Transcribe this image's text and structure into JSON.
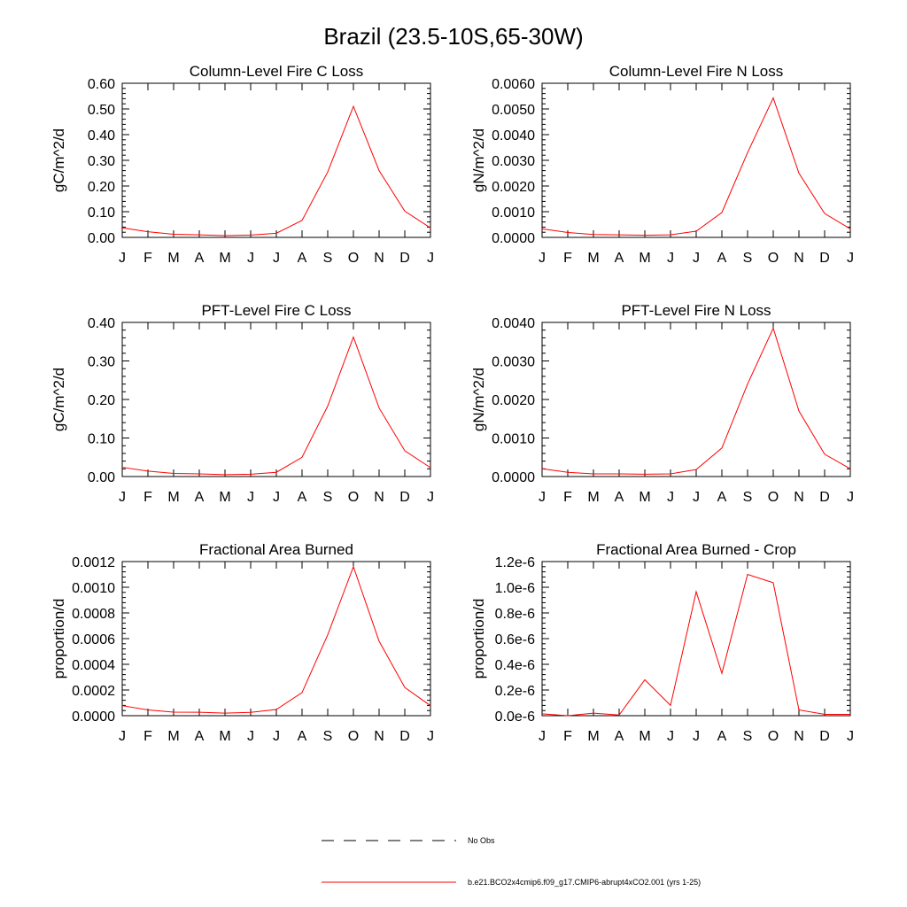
{
  "figure": {
    "title": "Brazil (23.5-10S,65-30W)"
  },
  "legend": {
    "obs_label": "No Obs",
    "model_label": "b.e21.BCO2x4cmip6.f09_g17.CMIP6-abrupt4xCO2.001 (yrs 1-25)",
    "obs_color": "#000000",
    "model_color": "#ff0000"
  },
  "chart_data": [
    {
      "type": "line",
      "title": "Column-Level Fire C Loss",
      "xlabel": "",
      "ylabel": "gC/m^2/d",
      "categories": [
        "J",
        "F",
        "M",
        "A",
        "M",
        "J",
        "J",
        "A",
        "S",
        "O",
        "N",
        "D",
        "J"
      ],
      "ylim": [
        0,
        0.6
      ],
      "yticks": [
        0,
        0.1,
        0.2,
        0.3,
        0.4,
        0.5,
        0.6
      ],
      "ytick_labels": [
        "0.00",
        "0.10",
        "0.20",
        "0.30",
        "0.40",
        "0.50",
        "0.60"
      ],
      "series": [
        {
          "name": "b.e21.BCO2x4cmip6.f09_g17.CMIP6-abrupt4xCO2.001 (yrs 1-25)",
          "values": [
            0.037,
            0.022,
            0.012,
            0.01,
            0.007,
            0.009,
            0.016,
            0.066,
            0.255,
            0.51,
            0.26,
            0.102,
            0.037
          ]
        }
      ]
    },
    {
      "type": "line",
      "title": "Column-Level Fire N Loss",
      "xlabel": "",
      "ylabel": "gN/m^2/d",
      "categories": [
        "J",
        "F",
        "M",
        "A",
        "M",
        "J",
        "J",
        "A",
        "S",
        "O",
        "N",
        "D",
        "J"
      ],
      "ylim": [
        0,
        0.006
      ],
      "yticks": [
        0,
        0.001,
        0.002,
        0.003,
        0.004,
        0.005,
        0.006
      ],
      "ytick_labels": [
        "0.0000",
        "0.0010",
        "0.0020",
        "0.0030",
        "0.0040",
        "0.0050",
        "0.0060"
      ],
      "series": [
        {
          "name": "b.e21.BCO2x4cmip6.f09_g17.CMIP6-abrupt4xCO2.001 (yrs 1-25)",
          "values": [
            0.00033,
            0.00019,
            0.00011,
            0.0001,
            8e-05,
            0.0001,
            0.00024,
            0.00097,
            0.0033,
            0.00543,
            0.0025,
            0.00093,
            0.00033
          ]
        }
      ]
    },
    {
      "type": "line",
      "title": "PFT-Level Fire C Loss",
      "xlabel": "",
      "ylabel": "gC/m^2/d",
      "categories": [
        "J",
        "F",
        "M",
        "A",
        "M",
        "J",
        "J",
        "A",
        "S",
        "O",
        "N",
        "D",
        "J"
      ],
      "ylim": [
        0,
        0.4
      ],
      "yticks": [
        0,
        0.1,
        0.2,
        0.3,
        0.4
      ],
      "ytick_labels": [
        "0.00",
        "0.10",
        "0.20",
        "0.30",
        "0.40"
      ],
      "series": [
        {
          "name": "b.e21.BCO2x4cmip6.f09_g17.CMIP6-abrupt4xCO2.001 (yrs 1-25)",
          "values": [
            0.024,
            0.014,
            0.008,
            0.007,
            0.005,
            0.006,
            0.011,
            0.05,
            0.183,
            0.362,
            0.178,
            0.067,
            0.023
          ]
        }
      ]
    },
    {
      "type": "line",
      "title": "PFT-Level Fire N Loss",
      "xlabel": "",
      "ylabel": "gN/m^2/d",
      "categories": [
        "J",
        "F",
        "M",
        "A",
        "M",
        "J",
        "J",
        "A",
        "S",
        "O",
        "N",
        "D",
        "J"
      ],
      "ylim": [
        0,
        0.004
      ],
      "yticks": [
        0,
        0.001,
        0.002,
        0.003,
        0.004
      ],
      "ytick_labels": [
        "0.0000",
        "0.0010",
        "0.0020",
        "0.0030",
        "0.0040"
      ],
      "series": [
        {
          "name": "b.e21.BCO2x4cmip6.f09_g17.CMIP6-abrupt4xCO2.001 (yrs 1-25)",
          "values": [
            0.0002,
            0.00011,
            7e-05,
            7e-05,
            6e-05,
            7e-05,
            0.00018,
            0.00074,
            0.0024,
            0.00385,
            0.0017,
            0.00058,
            0.0002
          ]
        }
      ]
    },
    {
      "type": "line",
      "title": "Fractional Area Burned",
      "xlabel": "",
      "ylabel": "proportion/d",
      "categories": [
        "J",
        "F",
        "M",
        "A",
        "M",
        "J",
        "J",
        "A",
        "S",
        "O",
        "N",
        "D",
        "J"
      ],
      "ylim": [
        0,
        0.0012
      ],
      "yticks": [
        0,
        0.0002,
        0.0004,
        0.0006,
        0.0008,
        0.001,
        0.0012
      ],
      "ytick_labels": [
        "0.0000",
        "0.0002",
        "0.0004",
        "0.0006",
        "0.0008",
        "0.0010",
        "0.0012"
      ],
      "series": [
        {
          "name": "b.e21.BCO2x4cmip6.f09_g17.CMIP6-abrupt4xCO2.001 (yrs 1-25)",
          "values": [
            7.8e-05,
            4.5e-05,
            2.8e-05,
            2.7e-05,
            2e-05,
            2.6e-05,
            4.8e-05,
            0.00018,
            0.00063,
            0.00116,
            0.00058,
            0.00022,
            7.8e-05
          ]
        }
      ]
    },
    {
      "type": "line",
      "title": "Fractional Area Burned - Crop",
      "xlabel": "",
      "ylabel": "proportion/d",
      "categories": [
        "J",
        "F",
        "M",
        "A",
        "M",
        "J",
        "J",
        "A",
        "S",
        "O",
        "N",
        "D",
        "J"
      ],
      "ylim": [
        0,
        1.2e-06
      ],
      "yticks": [
        0,
        2e-07,
        4e-07,
        6e-07,
        8e-07,
        1e-06,
        1.2e-06
      ],
      "ytick_labels": [
        "0.0e-6",
        "0.2e-6",
        "0.4e-6",
        "0.6e-6",
        "0.8e-6",
        "1.0e-6",
        "1.2e-6"
      ],
      "series": [
        {
          "name": "b.e21.BCO2x4cmip6.f09_g17.CMIP6-abrupt4xCO2.001 (yrs 1-25)",
          "values": [
            1.5e-08,
            0,
            2e-08,
            5e-09,
            2.8e-07,
            8e-08,
            9.65e-07,
            3.3e-07,
            1.1e-06,
            1.035e-06,
            4.5e-08,
            1e-08,
            1e-08
          ]
        }
      ]
    }
  ]
}
